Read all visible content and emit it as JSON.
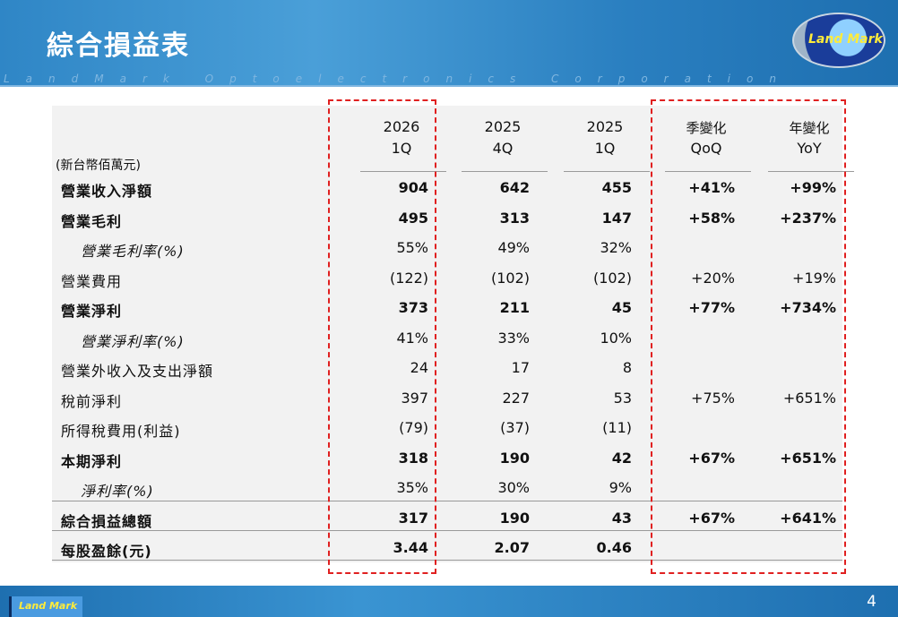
{
  "header": {
    "title": "綜合損益表",
    "tagline": "LandMark Optoelectronics Corporation",
    "logo_text": "Land Mark"
  },
  "table": {
    "unit": "(新台幣佰萬元)",
    "columns": [
      {
        "l1": "2026",
        "l2": "1Q"
      },
      {
        "l1": "2025",
        "l2": "4Q"
      },
      {
        "l1": "2025",
        "l2": "1Q"
      },
      {
        "l1": "季變化",
        "l2": "QoQ"
      },
      {
        "l1": "年變化",
        "l2": "YoY"
      }
    ],
    "rows": [
      {
        "label": "營業收入淨額",
        "style": "b",
        "v": [
          "904",
          "642",
          "455",
          "+41%",
          "+99%"
        ]
      },
      {
        "label": "營業毛利",
        "style": "b",
        "v": [
          "495",
          "313",
          "147",
          "+58%",
          "+237%"
        ]
      },
      {
        "label": "營業毛利率(%)",
        "style": "i",
        "v": [
          "55%",
          "49%",
          "32%",
          "",
          ""
        ]
      },
      {
        "label": "營業費用",
        "style": "n",
        "v": [
          "(122)",
          "(102)",
          "(102)",
          "+20%",
          "+19%"
        ]
      },
      {
        "label": "營業淨利",
        "style": "b",
        "v": [
          "373",
          "211",
          "45",
          "+77%",
          "+734%"
        ]
      },
      {
        "label": "營業淨利率(%)",
        "style": "i",
        "v": [
          "41%",
          "33%",
          "10%",
          "",
          ""
        ]
      },
      {
        "label": "營業外收入及支出淨額",
        "style": "n",
        "v": [
          "24",
          "17",
          "8",
          "",
          ""
        ]
      },
      {
        "label": "稅前淨利",
        "style": "n",
        "v": [
          "397",
          "227",
          "53",
          "+75%",
          "+651%"
        ]
      },
      {
        "label": "所得稅費用(利益)",
        "style": "n",
        "v": [
          "(79)",
          "(37)",
          "(11)",
          "",
          ""
        ]
      },
      {
        "label": "本期淨利",
        "style": "b",
        "v": [
          "318",
          "190",
          "42",
          "+67%",
          "+651%"
        ]
      },
      {
        "label": "淨利率(%)",
        "style": "i",
        "v": [
          "35%",
          "30%",
          "9%",
          "",
          ""
        ]
      },
      {
        "label": "綜合損益總額",
        "style": "b",
        "v": [
          "317",
          "190",
          "43",
          "+67%",
          "+641%"
        ]
      },
      {
        "label": "每股盈餘(元)",
        "style": "b",
        "v": [
          "3.44",
          "2.07",
          "0.46",
          "",
          ""
        ]
      }
    ]
  },
  "footer": {
    "logo_text": "Land Mark",
    "page": "4"
  },
  "colors": {
    "highlight": "#e02020",
    "header_blue": "#2f86c6"
  }
}
